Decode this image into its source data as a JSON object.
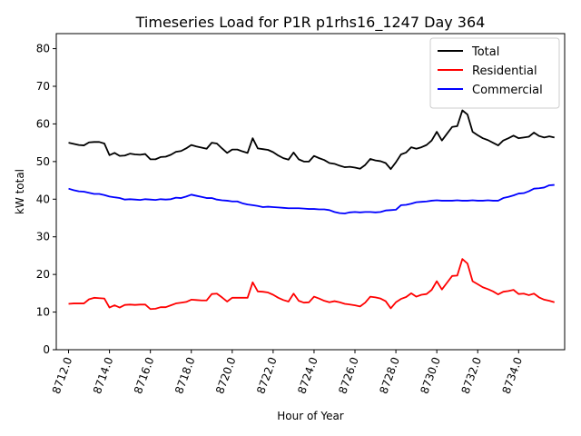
{
  "chart_data": {
    "type": "line",
    "title": "Timeseries Load for P1R p1rhs16_1247  Day 364",
    "xlabel": "Hour of Year",
    "ylabel": "kW total",
    "xlim": [
      8711.4,
      8736.25
    ],
    "ylim": [
      0,
      84
    ],
    "x_ticks": [
      8712,
      8714,
      8716,
      8718,
      8720,
      8722,
      8724,
      8726,
      8728,
      8730,
      8732,
      8734
    ],
    "x_tick_labels": [
      "8712.0",
      "8714.0",
      "8716.0",
      "8718.0",
      "8720.0",
      "8722.0",
      "8724.0",
      "8726.0",
      "8728.0",
      "8730.0",
      "8732.0",
      "8734.0"
    ],
    "y_ticks": [
      0,
      10,
      20,
      30,
      40,
      50,
      60,
      70,
      80
    ],
    "y_tick_labels": [
      "0",
      "10",
      "20",
      "30",
      "40",
      "50",
      "60",
      "70",
      "80"
    ],
    "legend_position": "top-right",
    "series": [
      {
        "name": "Total",
        "color": "#000000",
        "x_start": 8712,
        "x_step": 0.25,
        "values": [
          55.0,
          54.7,
          54.4,
          54.3,
          55.1,
          55.2,
          55.2,
          54.8,
          51.7,
          52.3,
          51.5,
          51.6,
          52.1,
          51.9,
          51.8,
          52.0,
          50.6,
          50.6,
          51.2,
          51.3,
          51.8,
          52.6,
          52.8,
          53.5,
          54.4,
          54.0,
          53.7,
          53.4,
          55.0,
          54.8,
          53.5,
          52.3,
          53.2,
          53.2,
          52.7,
          52.3,
          56.2,
          53.5,
          53.3,
          53.1,
          52.5,
          51.6,
          50.9,
          50.5,
          52.4,
          50.6,
          50.0,
          50.0,
          51.5,
          50.9,
          50.4,
          49.6,
          49.4,
          48.9,
          48.5,
          48.6,
          48.4,
          48.1,
          49.1,
          50.7,
          50.3,
          50.1,
          49.6,
          48.0,
          49.8,
          51.9,
          52.4,
          53.8,
          53.4,
          53.8,
          54.4,
          55.6,
          57.9,
          55.6,
          57.4,
          59.2,
          59.4,
          63.6,
          62.5,
          57.9,
          57.0,
          56.2,
          55.7,
          55.0,
          54.3,
          55.6,
          56.2,
          56.9,
          56.2,
          56.4,
          56.6,
          57.7,
          56.8,
          56.4,
          56.7,
          56.4
        ]
      },
      {
        "name": "Residential",
        "color": "#ff0000",
        "x_start": 8712,
        "x_step": 0.25,
        "values": [
          12.2,
          12.3,
          12.3,
          12.3,
          13.4,
          13.8,
          13.7,
          13.6,
          11.2,
          11.8,
          11.2,
          11.9,
          12.0,
          11.9,
          12.0,
          12.0,
          10.8,
          10.9,
          11.3,
          11.3,
          11.8,
          12.3,
          12.5,
          12.7,
          13.3,
          13.2,
          13.1,
          13.1,
          14.8,
          14.9,
          13.9,
          12.8,
          13.8,
          13.8,
          13.8,
          13.8,
          17.9,
          15.5,
          15.4,
          15.2,
          14.6,
          13.8,
          13.2,
          12.8,
          14.9,
          13.0,
          12.5,
          12.6,
          14.1,
          13.6,
          13.0,
          12.6,
          12.9,
          12.6,
          12.2,
          12.0,
          11.8,
          11.5,
          12.5,
          14.1,
          13.9,
          13.6,
          12.9,
          11.0,
          12.6,
          13.5,
          14.0,
          15.0,
          14.1,
          14.6,
          14.8,
          15.9,
          18.2,
          16.0,
          17.8,
          19.6,
          19.7,
          24.1,
          22.9,
          18.2,
          17.4,
          16.6,
          16.1,
          15.5,
          14.7,
          15.4,
          15.6,
          15.9,
          14.8,
          14.9,
          14.5,
          14.9,
          13.9,
          13.3,
          13.0,
          12.6
        ]
      },
      {
        "name": "Commercial",
        "color": "#0000ff",
        "x_start": 8712,
        "x_step": 0.25,
        "values": [
          42.8,
          42.4,
          42.1,
          42.0,
          41.7,
          41.4,
          41.4,
          41.1,
          40.7,
          40.5,
          40.3,
          39.9,
          40.0,
          39.9,
          39.8,
          40.0,
          39.9,
          39.8,
          40.0,
          39.9,
          40.0,
          40.4,
          40.3,
          40.7,
          41.2,
          40.9,
          40.6,
          40.3,
          40.3,
          39.9,
          39.7,
          39.6,
          39.4,
          39.4,
          38.9,
          38.6,
          38.4,
          38.2,
          37.9,
          38.0,
          37.9,
          37.8,
          37.7,
          37.6,
          37.6,
          37.6,
          37.5,
          37.4,
          37.4,
          37.3,
          37.3,
          37.1,
          36.6,
          36.3,
          36.2,
          36.5,
          36.6,
          36.5,
          36.6,
          36.6,
          36.5,
          36.6,
          37.0,
          37.1,
          37.2,
          38.4,
          38.5,
          38.8,
          39.2,
          39.3,
          39.4,
          39.6,
          39.7,
          39.6,
          39.6,
          39.6,
          39.7,
          39.6,
          39.6,
          39.7,
          39.6,
          39.6,
          39.7,
          39.6,
          39.6,
          40.3,
          40.6,
          41.0,
          41.5,
          41.6,
          42.1,
          42.8,
          42.9,
          43.1,
          43.7,
          43.8
        ]
      }
    ]
  }
}
